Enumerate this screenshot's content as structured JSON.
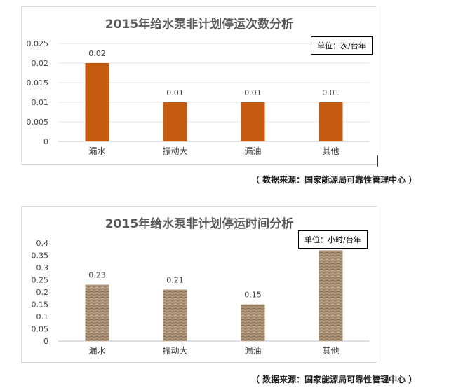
{
  "charts": [
    {
      "title": "2015年给水泵非计划停运次数分析",
      "unit_label": "单位：次/台年",
      "source_note": "（ 数据来源：国家能源局可靠性管理中心 ）"
    },
    {
      "title": "2015年给水泵非计划停运时间分析",
      "unit_label": "单位：小时/台年",
      "source_note": "（ 数据来源：国家能源局可靠性管理中心 ）"
    }
  ],
  "chart_data": [
    {
      "type": "bar",
      "title": "2015年给水泵非计划停运次数分析",
      "categories": [
        "漏水",
        "振动大",
        "漏油",
        "其他"
      ],
      "values": [
        0.02,
        0.01,
        0.01,
        0.01
      ],
      "data_labels": [
        "0.02",
        "0.01",
        "0.01",
        "0.01"
      ],
      "yticks": [
        "0",
        "0.005",
        "0.01",
        "0.015",
        "0.02",
        "0.025"
      ],
      "ylim": [
        0,
        0.025
      ],
      "bar_color": "#c55a11",
      "grid": true
    },
    {
      "type": "bar",
      "title": "2015年给水泵非计划停运时间分析",
      "categories": [
        "漏水",
        "振动大",
        "漏油",
        "其他"
      ],
      "values": [
        0.23,
        0.21,
        0.15,
        0.37
      ],
      "data_labels": [
        "0.23",
        "0.21",
        "0.15",
        ""
      ],
      "yticks": [
        "0",
        "0.05",
        "0.1",
        "0.15",
        "0.2",
        "0.25",
        "0.3",
        "0.35",
        "0.4"
      ],
      "ylim": [
        0,
        0.4
      ],
      "bar_color": "#a88b6c",
      "bar_pattern": "textured",
      "grid": false
    }
  ]
}
